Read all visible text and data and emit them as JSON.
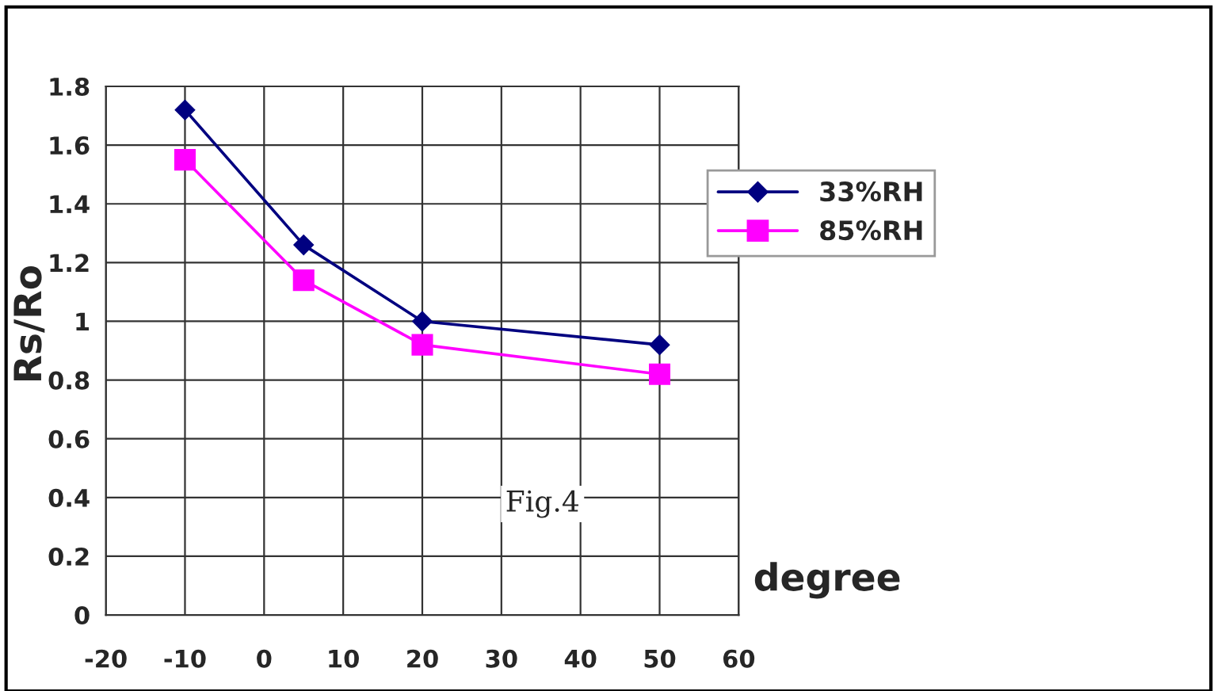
{
  "chart_data": {
    "type": "line",
    "xlabel": "degree",
    "ylabel": "Rs/Ro",
    "x": [
      -10,
      5,
      20,
      50
    ],
    "series": [
      {
        "name": "33%RH",
        "color": "#000080",
        "values": [
          1.72,
          1.26,
          1.0,
          0.92
        ]
      },
      {
        "name": "85%RH",
        "color": "#ff00ff",
        "values": [
          1.55,
          1.14,
          0.92,
          0.82
        ],
        "marker": "square"
      }
    ],
    "marker": "diamond",
    "xlim": [
      -20,
      60
    ],
    "xticks": [
      -20,
      -10,
      0,
      10,
      20,
      30,
      40,
      50,
      60
    ],
    "ylim": [
      0,
      1.8
    ],
    "yticks": [
      0,
      0.2,
      0.4,
      0.6,
      0.8,
      1,
      1.2,
      1.4,
      1.6,
      1.8
    ],
    "grid": true,
    "legend": "right",
    "annotations": [
      "Fig.4"
    ]
  }
}
